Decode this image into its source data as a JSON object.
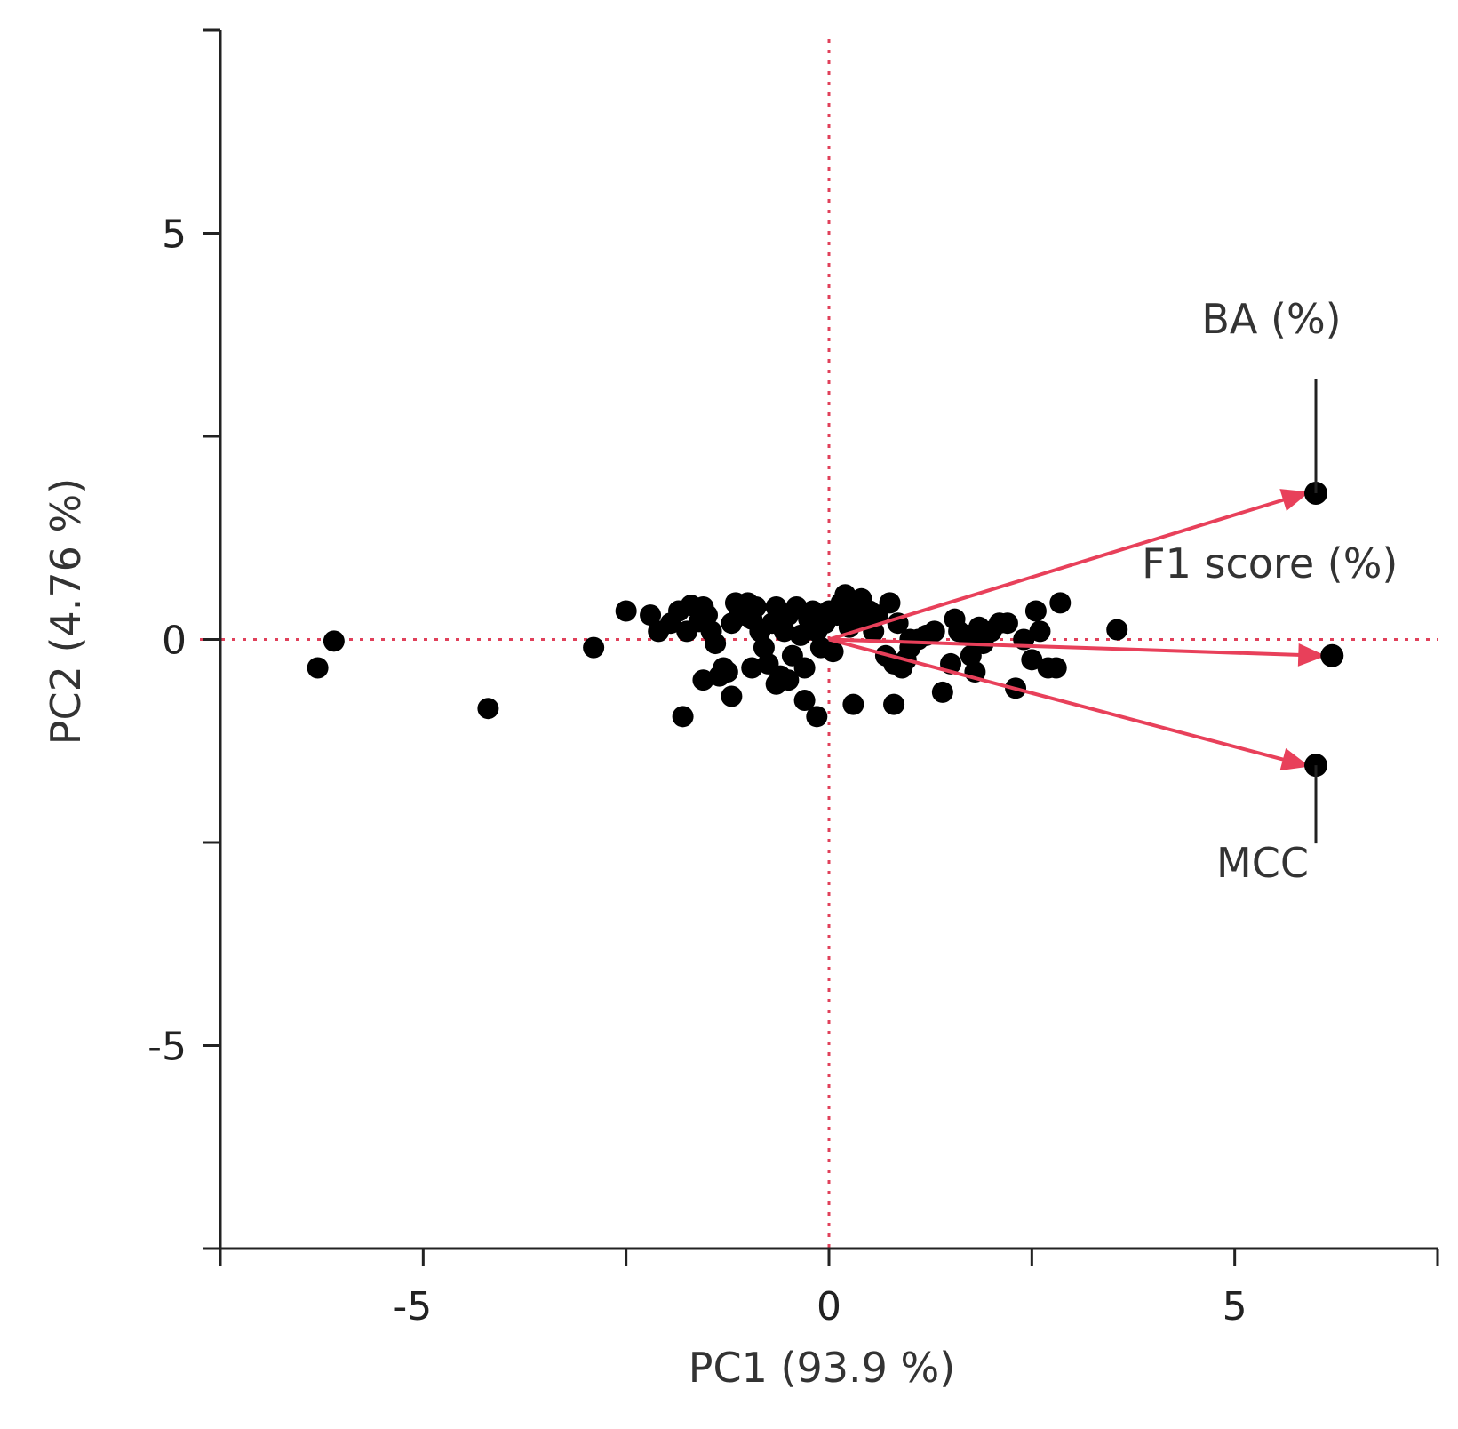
{
  "chart_data": {
    "type": "scatter",
    "title": "",
    "xlabel": "PC1  (93.9 %)",
    "ylabel": "PC2  (4.76 %)",
    "xlim": [
      -7.5,
      7.5
    ],
    "ylim": [
      -7.5,
      7.5
    ],
    "x_ticks": [
      -5,
      0,
      5
    ],
    "y_ticks": [
      5,
      0,
      -5
    ],
    "x_minor_ticks": [
      -7.5,
      -2.5,
      2.5,
      7.5
    ],
    "y_minor_ticks": [
      7.5,
      2.5,
      -2.5,
      -7.5
    ],
    "reference_lines": {
      "x": 0,
      "y": 0,
      "color": "#e0405a",
      "style": "dotted"
    },
    "grid": false,
    "legend": "none",
    "point_color": "#000000",
    "arrow_color": "#e8405a",
    "points": [
      [
        -6.3,
        -0.35
      ],
      [
        -6.1,
        -0.02
      ],
      [
        -4.2,
        -0.85
      ],
      [
        -2.9,
        -0.1
      ],
      [
        -2.5,
        0.35
      ],
      [
        -2.2,
        0.3
      ],
      [
        -2.1,
        0.1
      ],
      [
        -1.95,
        0.2
      ],
      [
        -1.85,
        0.35
      ],
      [
        -1.75,
        0.1
      ],
      [
        -1.7,
        0.42
      ],
      [
        -1.6,
        0.22
      ],
      [
        -1.55,
        0.4
      ],
      [
        -1.5,
        0.3
      ],
      [
        -1.45,
        0.1
      ],
      [
        -1.4,
        -0.05
      ],
      [
        -1.35,
        -0.45
      ],
      [
        -1.3,
        -0.35
      ],
      [
        -1.25,
        -0.4
      ],
      [
        -1.2,
        0.2
      ],
      [
        -1.15,
        0.45
      ],
      [
        -1.1,
        0.35
      ],
      [
        -1.05,
        0.3
      ],
      [
        -1.0,
        0.45
      ],
      [
        -0.95,
        0.25
      ],
      [
        -0.9,
        0.4
      ],
      [
        -0.85,
        0.1
      ],
      [
        -0.8,
        -0.1
      ],
      [
        -0.75,
        -0.3
      ],
      [
        -0.7,
        0.2
      ],
      [
        -0.65,
        0.4
      ],
      [
        -0.6,
        -0.45
      ],
      [
        -0.55,
        0.1
      ],
      [
        -0.5,
        0.3
      ],
      [
        -0.45,
        -0.2
      ],
      [
        -0.4,
        0.4
      ],
      [
        -0.35,
        0.05
      ],
      [
        -0.3,
        -0.35
      ],
      [
        -0.25,
        0.25
      ],
      [
        -0.2,
        0.35
      ],
      [
        -0.15,
        0.1
      ],
      [
        -0.1,
        -0.1
      ],
      [
        -0.05,
        0.2
      ],
      [
        0.0,
        0.35
      ],
      [
        0.05,
        -0.15
      ],
      [
        0.1,
        0.3
      ],
      [
        0.15,
        0.45
      ],
      [
        0.2,
        0.55
      ],
      [
        0.25,
        0.15
      ],
      [
        0.3,
        0.4
      ],
      [
        0.35,
        0.3
      ],
      [
        0.4,
        0.5
      ],
      [
        0.45,
        0.25
      ],
      [
        0.5,
        0.35
      ],
      [
        0.55,
        0.1
      ],
      [
        0.6,
        0.3
      ],
      [
        0.7,
        -0.2
      ],
      [
        0.75,
        0.45
      ],
      [
        0.8,
        -0.3
      ],
      [
        0.85,
        0.2
      ],
      [
        0.9,
        -0.35
      ],
      [
        1.0,
        -0.1
      ],
      [
        1.1,
        0.0
      ],
      [
        1.2,
        0.05
      ],
      [
        1.3,
        0.1
      ],
      [
        1.4,
        -0.65
      ],
      [
        1.5,
        -0.3
      ],
      [
        1.55,
        0.25
      ],
      [
        1.6,
        0.1
      ],
      [
        1.7,
        0.05
      ],
      [
        1.75,
        -0.2
      ],
      [
        1.8,
        -0.4
      ],
      [
        1.85,
        0.15
      ],
      [
        1.9,
        -0.05
      ],
      [
        2.0,
        0.1
      ],
      [
        2.1,
        0.2
      ],
      [
        2.2,
        0.2
      ],
      [
        2.3,
        -0.6
      ],
      [
        2.4,
        0.0
      ],
      [
        2.5,
        -0.25
      ],
      [
        2.55,
        0.35
      ],
      [
        2.6,
        0.1
      ],
      [
        2.7,
        -0.35
      ],
      [
        2.8,
        -0.35
      ],
      [
        2.85,
        0.45
      ],
      [
        3.55,
        0.12
      ],
      [
        -1.8,
        -0.95
      ],
      [
        -1.55,
        -0.5
      ],
      [
        -1.2,
        -0.7
      ],
      [
        -0.5,
        -0.5
      ],
      [
        -0.3,
        -0.75
      ],
      [
        -0.15,
        -0.95
      ],
      [
        0.3,
        -0.8
      ],
      [
        0.8,
        -0.8
      ],
      [
        1.0,
        -0.0
      ],
      [
        0.95,
        -0.25
      ],
      [
        -0.65,
        -0.55
      ],
      [
        -0.95,
        -0.35
      ]
    ],
    "arrow_origin": [
      0,
      0
    ],
    "variables": [
      {
        "label": "BA (%)",
        "x": 6.0,
        "y": 1.8
      },
      {
        "label": "F1 score (%)",
        "x": 6.2,
        "y": -0.2
      },
      {
        "label": "MCC",
        "x": 6.0,
        "y": -1.55
      }
    ]
  }
}
